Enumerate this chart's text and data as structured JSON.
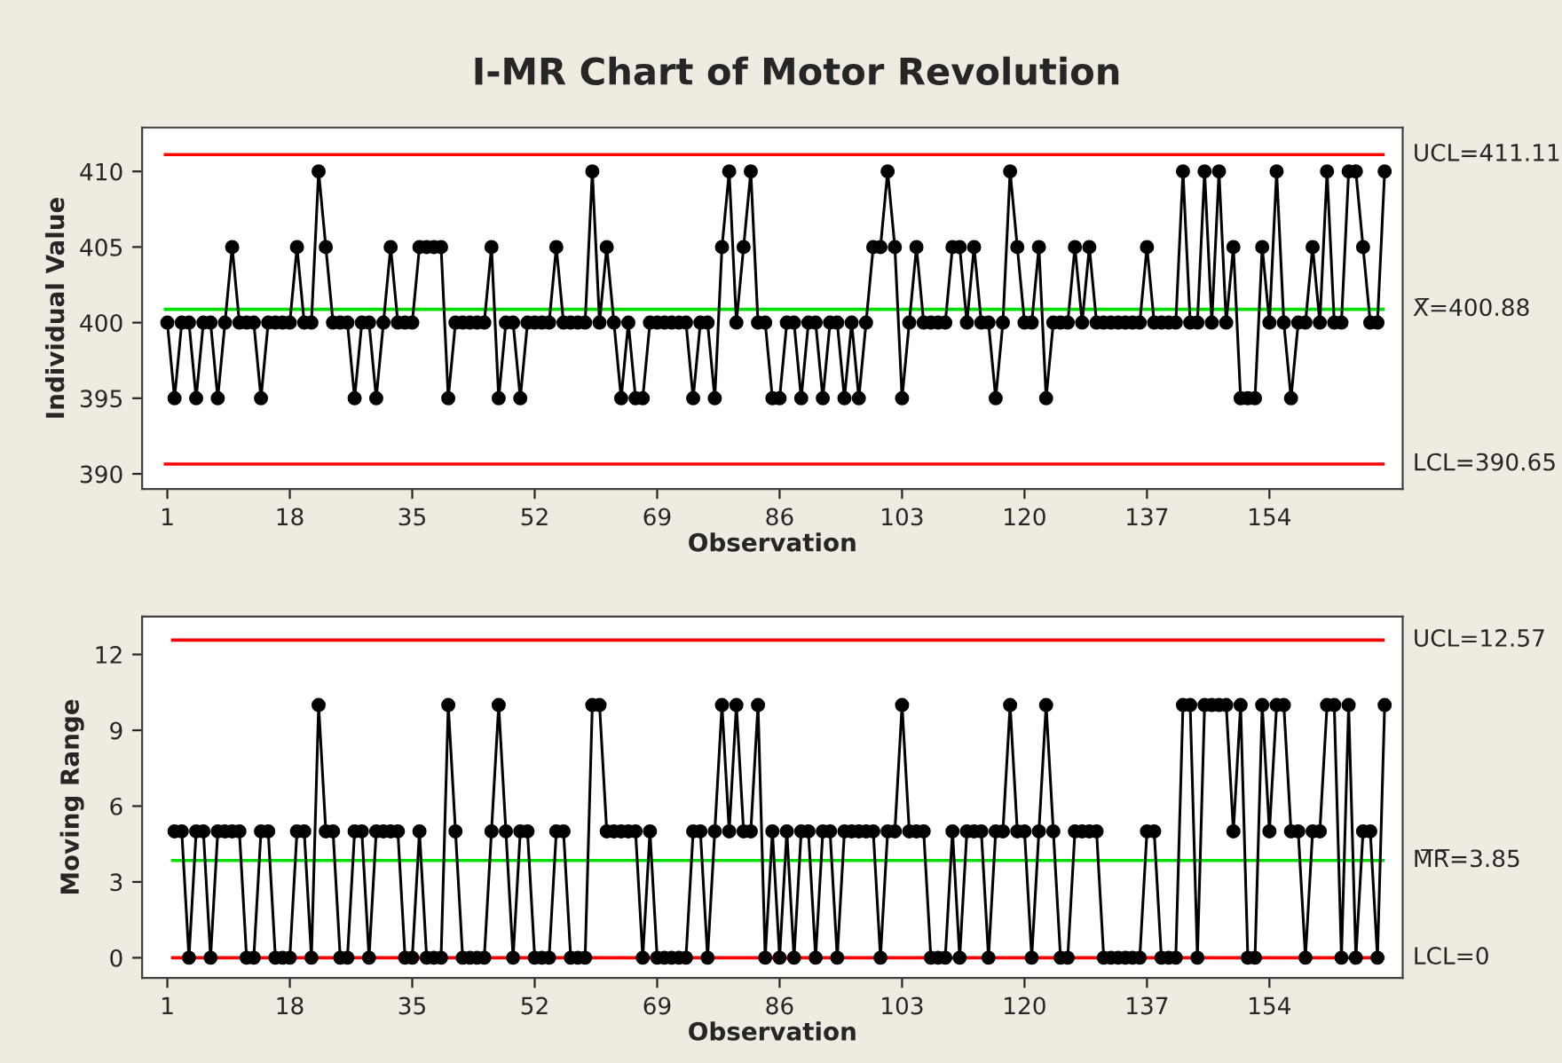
{
  "chart_data": [
    {
      "type": "line",
      "title": "I-MR Chart of Motor Revolution",
      "xlabel": "Observation",
      "ylabel": "Individual Value",
      "x": [
        1,
        2,
        3,
        4,
        5,
        6,
        7,
        8,
        9,
        10,
        11,
        12,
        13,
        14,
        15,
        16,
        17,
        18,
        19,
        20,
        21,
        22,
        23,
        24,
        25,
        26,
        27,
        28,
        29,
        30,
        31,
        32,
        33,
        34,
        35,
        36,
        37,
        38,
        39,
        40,
        41,
        42,
        43,
        44,
        45,
        46,
        47,
        48,
        49,
        50,
        51,
        52,
        53,
        54,
        55,
        56,
        57,
        58,
        59,
        60,
        61,
        62,
        63,
        64,
        65,
        66,
        67,
        68,
        69,
        70,
        71,
        72,
        73,
        74,
        75,
        76,
        77,
        78,
        79,
        80,
        81,
        82,
        83,
        84,
        85,
        86,
        87,
        88,
        89,
        90,
        91,
        92,
        93,
        94,
        95,
        96,
        97,
        98,
        99,
        100,
        101,
        102,
        103,
        104,
        105,
        106,
        107,
        108,
        109,
        110,
        111,
        112,
        113,
        114,
        115,
        116,
        117,
        118,
        119,
        120,
        121,
        122,
        123,
        124,
        125,
        126,
        127,
        128,
        129,
        130,
        131,
        132,
        133,
        134,
        135,
        136,
        137,
        138,
        139,
        140,
        141,
        142,
        143,
        144,
        145,
        146,
        147,
        148,
        149,
        150,
        151,
        152,
        153,
        154,
        155,
        156,
        157,
        158,
        159,
        160,
        161,
        162,
        163,
        164,
        165,
        166,
        167,
        168,
        169,
        170
      ],
      "series": [
        {
          "color": "#000000",
          "values": [
            400,
            395,
            400,
            400,
            395,
            400,
            400,
            395,
            400,
            405,
            400,
            400,
            400,
            395,
            400,
            400,
            400,
            400,
            405,
            400,
            400,
            410,
            405,
            400,
            400,
            400,
            395,
            400,
            400,
            395,
            400,
            405,
            400,
            400,
            400,
            405,
            405,
            405,
            405,
            395,
            400,
            400,
            400,
            400,
            400,
            405,
            395,
            400,
            400,
            395,
            400,
            400,
            400,
            400,
            405,
            400,
            400,
            400,
            400,
            410,
            400,
            405,
            400,
            395,
            400,
            395,
            395,
            400,
            400,
            400,
            400,
            400,
            400,
            395,
            400,
            400,
            395,
            405,
            410,
            400,
            405,
            410,
            400,
            400,
            395,
            395,
            400,
            400,
            395,
            400,
            400,
            395,
            400,
            400,
            395,
            400,
            395,
            400,
            405,
            405,
            410,
            405,
            395,
            400,
            405,
            400,
            400,
            400,
            400,
            405,
            405,
            400,
            405,
            400,
            400,
            395,
            400,
            410,
            405,
            400,
            400,
            405,
            395,
            400,
            400,
            400,
            405,
            400,
            405,
            400,
            400,
            400,
            400,
            400,
            400,
            400,
            405,
            400,
            400,
            400,
            400,
            410,
            400,
            400,
            410,
            400,
            410,
            400,
            405,
            395,
            395,
            395,
            405,
            400,
            410,
            400,
            395,
            400,
            400,
            405,
            400,
            410,
            400,
            400,
            410,
            410,
            405,
            400,
            400,
            410
          ]
        }
      ],
      "marker": "circle",
      "line_style": "solid",
      "grid": false,
      "xlim": [
        -2.5,
        172.5
      ],
      "xticks": [
        1,
        18,
        35,
        52,
        69,
        86,
        103,
        120,
        137,
        154
      ],
      "ylim": [
        389,
        412.9
      ],
      "yticks": [
        390,
        395,
        400,
        405,
        410
      ],
      "ref_lines": [
        {
          "axis": "y",
          "value": 411.11,
          "label": "UCL=411.11",
          "color": "#ff0000"
        },
        {
          "axis": "y",
          "value": 400.88,
          "label": "X̅=400.88",
          "color": "#00e000"
        },
        {
          "axis": "y",
          "value": 390.65,
          "label": "LCL=390.65",
          "color": "#ff0000"
        }
      ]
    },
    {
      "type": "line",
      "xlabel": "Observation",
      "ylabel": "Moving Range",
      "x": [
        2,
        3,
        4,
        5,
        6,
        7,
        8,
        9,
        10,
        11,
        12,
        13,
        14,
        15,
        16,
        17,
        18,
        19,
        20,
        21,
        22,
        23,
        24,
        25,
        26,
        27,
        28,
        29,
        30,
        31,
        32,
        33,
        34,
        35,
        36,
        37,
        38,
        39,
        40,
        41,
        42,
        43,
        44,
        45,
        46,
        47,
        48,
        49,
        50,
        51,
        52,
        53,
        54,
        55,
        56,
        57,
        58,
        59,
        60,
        61,
        62,
        63,
        64,
        65,
        66,
        67,
        68,
        69,
        70,
        71,
        72,
        73,
        74,
        75,
        76,
        77,
        78,
        79,
        80,
        81,
        82,
        83,
        84,
        85,
        86,
        87,
        88,
        89,
        90,
        91,
        92,
        93,
        94,
        95,
        96,
        97,
        98,
        99,
        100,
        101,
        102,
        103,
        104,
        105,
        106,
        107,
        108,
        109,
        110,
        111,
        112,
        113,
        114,
        115,
        116,
        117,
        118,
        119,
        120,
        121,
        122,
        123,
        124,
        125,
        126,
        127,
        128,
        129,
        130,
        131,
        132,
        133,
        134,
        135,
        136,
        137,
        138,
        139,
        140,
        141,
        142,
        143,
        144,
        145,
        146,
        147,
        148,
        149,
        150,
        151,
        152,
        153,
        154,
        155,
        156,
        157,
        158,
        159,
        160,
        161,
        162,
        163,
        164,
        165,
        166,
        167,
        168,
        169,
        170
      ],
      "series": [
        {
          "color": "#000000",
          "values": [
            5,
            5,
            0,
            5,
            5,
            0,
            5,
            5,
            5,
            5,
            0,
            0,
            5,
            5,
            0,
            0,
            0,
            5,
            5,
            0,
            10,
            5,
            5,
            0,
            0,
            5,
            5,
            0,
            5,
            5,
            5,
            5,
            0,
            0,
            5,
            0,
            0,
            0,
            10,
            5,
            0,
            0,
            0,
            0,
            5,
            10,
            5,
            0,
            5,
            5,
            0,
            0,
            0,
            5,
            5,
            0,
            0,
            0,
            10,
            10,
            5,
            5,
            5,
            5,
            5,
            0,
            5,
            0,
            0,
            0,
            0,
            0,
            5,
            5,
            0,
            5,
            10,
            5,
            10,
            5,
            5,
            10,
            0,
            5,
            0,
            5,
            0,
            5,
            5,
            0,
            5,
            5,
            0,
            5,
            5,
            5,
            5,
            5,
            0,
            5,
            5,
            10,
            5,
            5,
            5,
            0,
            0,
            0,
            5,
            0,
            5,
            5,
            5,
            0,
            5,
            5,
            10,
            5,
            5,
            0,
            5,
            10,
            5,
            0,
            0,
            5,
            5,
            5,
            5,
            0,
            0,
            0,
            0,
            0,
            0,
            5,
            5,
            0,
            0,
            0,
            10,
            10,
            0,
            10,
            10,
            10,
            10,
            5,
            10,
            0,
            0,
            10,
            5,
            10,
            10,
            5,
            5,
            0,
            5,
            5,
            10,
            10,
            0,
            10,
            0,
            5,
            5,
            0,
            10
          ]
        }
      ],
      "marker": "circle",
      "line_style": "solid",
      "grid": false,
      "xlim": [
        -2.5,
        172.5
      ],
      "xticks": [
        1,
        18,
        35,
        52,
        69,
        86,
        103,
        120,
        137,
        154
      ],
      "ylim": [
        -0.8,
        13.5
      ],
      "yticks": [
        0,
        3,
        6,
        9,
        12
      ],
      "ref_lines": [
        {
          "axis": "y",
          "value": 12.57,
          "label": "UCL=12.57",
          "color": "#ff0000"
        },
        {
          "axis": "y",
          "value": 3.85,
          "label": "M̅R̅=3.85",
          "color": "#00e000"
        },
        {
          "axis": "y",
          "value": 0,
          "label": "LCL=0",
          "color": "#ff0000"
        }
      ]
    }
  ]
}
